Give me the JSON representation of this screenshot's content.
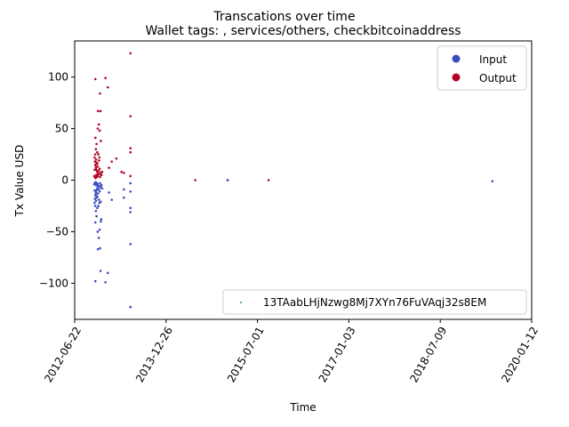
{
  "title": "Transcations over time",
  "subtitle": "Wallet tags: , services/others, checkbitcoinaddress",
  "legend_address": "13TAabLHjNzwg8Mj7XYn76FuVAqj32s8EM",
  "chart_data": {
    "type": "scatter",
    "title": "Transcations over time",
    "subtitle": "Wallet tags: , services/others, checkbitcoinaddress",
    "xlabel": "Time",
    "ylabel": "Tx Value USD",
    "x_is_date": true,
    "xlim": [
      "2012-06-22",
      "2020-01-12"
    ],
    "ylim": [
      -135,
      135
    ],
    "x_ticks": [
      "2012-06-22",
      "2013-12-26",
      "2015-07-01",
      "2017-01-03",
      "2018-07-09",
      "2020-01-12"
    ],
    "y_ticks": [
      -100,
      -50,
      0,
      50,
      100
    ],
    "grid": false,
    "legend_position": "top-right",
    "colors": {
      "Input": "#3b4cc0",
      "Output": "#b40426",
      "address": "#2ca02c"
    },
    "series": [
      {
        "name": "Output",
        "color": "#b40426",
        "points": [
          [
            "2012-10-25",
            98
          ],
          [
            "2012-11-10",
            67
          ],
          [
            "2012-11-22",
            84
          ],
          [
            "2012-11-25",
            67
          ],
          [
            "2012-12-25",
            99
          ],
          [
            "2013-01-08",
            90
          ],
          [
            "2013-05-25",
            123
          ],
          [
            "2013-05-25",
            62
          ],
          [
            "2013-05-25",
            31
          ],
          [
            "2013-05-25",
            27
          ],
          [
            "2013-05-25",
            4
          ],
          [
            "2012-10-25",
            41
          ],
          [
            "2012-11-01",
            35
          ],
          [
            "2012-11-08",
            50
          ],
          [
            "2012-11-15",
            54
          ],
          [
            "2012-11-20",
            48
          ],
          [
            "2012-11-27",
            38
          ],
          [
            "2012-10-28",
            30
          ],
          [
            "2012-11-05",
            27
          ],
          [
            "2012-11-12",
            25
          ],
          [
            "2012-11-18",
            22
          ],
          [
            "2012-10-20",
            22
          ],
          [
            "2012-10-22",
            18
          ],
          [
            "2012-10-25",
            15
          ],
          [
            "2012-10-28",
            12
          ],
          [
            "2012-11-01",
            10
          ],
          [
            "2012-11-05",
            8
          ],
          [
            "2012-11-10",
            6
          ],
          [
            "2012-11-15",
            9
          ],
          [
            "2012-11-20",
            11
          ],
          [
            "2012-11-25",
            7
          ],
          [
            "2012-12-01",
            5
          ],
          [
            "2012-10-18",
            4
          ],
          [
            "2012-10-22",
            3
          ],
          [
            "2012-10-26",
            2
          ],
          [
            "2012-10-30",
            5
          ],
          [
            "2012-11-03",
            3
          ],
          [
            "2012-11-08",
            4
          ],
          [
            "2012-11-14",
            6
          ],
          [
            "2012-11-22",
            3
          ],
          [
            "2012-11-28",
            5
          ],
          [
            "2012-12-05",
            8
          ],
          [
            "2013-01-15",
            12
          ],
          [
            "2013-02-01",
            18
          ],
          [
            "2013-03-01",
            21
          ],
          [
            "2013-04-01",
            8
          ],
          [
            "2013-04-15",
            7
          ],
          [
            "2012-10-24",
            25
          ],
          [
            "2012-10-29",
            20
          ],
          [
            "2012-11-06",
            16
          ],
          [
            "2012-11-16",
            19
          ],
          [
            "2012-10-21",
            10
          ],
          [
            "2012-10-27",
            14
          ],
          [
            "2012-11-02",
            17
          ],
          [
            "2012-11-09",
            13
          ],
          [
            "2014-06-20",
            0
          ],
          [
            "2015-01-02",
            0
          ],
          [
            "2015-09-06",
            0
          ]
        ]
      },
      {
        "name": "Input",
        "color": "#3b4cc0",
        "points": [
          [
            "2012-10-25",
            -98
          ],
          [
            "2012-11-25",
            -88
          ],
          [
            "2012-12-25",
            -99
          ],
          [
            "2013-01-08",
            -90
          ],
          [
            "2013-05-25",
            -123
          ],
          [
            "2013-05-25",
            -62
          ],
          [
            "2013-05-25",
            -31
          ],
          [
            "2013-05-25",
            -27
          ],
          [
            "2013-05-25",
            -11
          ],
          [
            "2013-05-25",
            -3
          ],
          [
            "2013-04-15",
            -17
          ],
          [
            "2013-04-15",
            -9
          ],
          [
            "2013-02-01",
            -19
          ],
          [
            "2013-01-15",
            -12
          ],
          [
            "2012-10-25",
            -41
          ],
          [
            "2012-11-01",
            -35
          ],
          [
            "2012-11-08",
            -50
          ],
          [
            "2012-11-15",
            -56
          ],
          [
            "2012-11-20",
            -48
          ],
          [
            "2012-11-27",
            -40
          ],
          [
            "2012-11-10",
            -67
          ],
          [
            "2012-11-22",
            -66
          ],
          [
            "2012-10-28",
            -30
          ],
          [
            "2012-11-05",
            -27
          ],
          [
            "2012-11-12",
            -25
          ],
          [
            "2012-11-18",
            -22
          ],
          [
            "2012-10-20",
            -22
          ],
          [
            "2012-10-22",
            -18
          ],
          [
            "2012-10-25",
            -15
          ],
          [
            "2012-10-28",
            -12
          ],
          [
            "2012-11-01",
            -10
          ],
          [
            "2012-11-05",
            -8
          ],
          [
            "2012-11-10",
            -6
          ],
          [
            "2012-11-15",
            -9
          ],
          [
            "2012-11-20",
            -11
          ],
          [
            "2012-11-25",
            -7
          ],
          [
            "2012-12-01",
            -5
          ],
          [
            "2012-10-18",
            -4
          ],
          [
            "2012-10-22",
            -3
          ],
          [
            "2012-10-26",
            -2
          ],
          [
            "2012-10-30",
            -5
          ],
          [
            "2012-11-03",
            -3
          ],
          [
            "2012-11-08",
            -4
          ],
          [
            "2012-11-14",
            -6
          ],
          [
            "2012-11-22",
            -3
          ],
          [
            "2012-11-28",
            -5
          ],
          [
            "2012-12-05",
            -8
          ],
          [
            "2012-10-24",
            -25
          ],
          [
            "2012-10-29",
            -20
          ],
          [
            "2012-11-06",
            -16
          ],
          [
            "2012-11-16",
            -19
          ],
          [
            "2012-10-21",
            -10
          ],
          [
            "2012-10-27",
            -14
          ],
          [
            "2012-11-02",
            -17
          ],
          [
            "2012-11-09",
            -13
          ],
          [
            "2012-11-26",
            -21
          ],
          [
            "2012-11-29",
            -38
          ],
          [
            "2015-01-02",
            0
          ],
          [
            "2019-05-20",
            -1
          ]
        ]
      }
    ],
    "legend_entries": [
      "Input",
      "Output"
    ],
    "legend2_entries": [
      "13TAabLHjNzwg8Mj7XYn76FuVAqj32s8EM"
    ]
  }
}
